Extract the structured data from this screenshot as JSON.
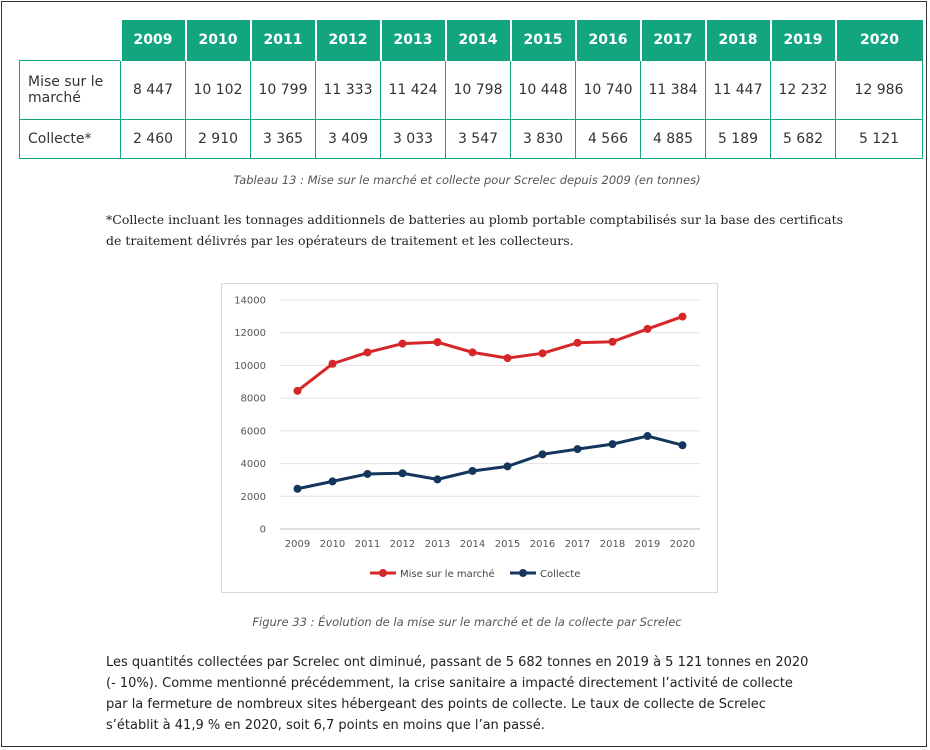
{
  "table": {
    "years": [
      "2009",
      "2010",
      "2011",
      "2012",
      "2013",
      "2014",
      "2015",
      "2016",
      "2017",
      "2018",
      "2019",
      "2020"
    ],
    "rows": [
      {
        "label": "Mise sur le marché",
        "values": [
          "8 447",
          "10 102",
          "10 799",
          "11 333",
          "11 424",
          "10 798",
          "10 448",
          "10 740",
          "11 384",
          "11 447",
          "12 232",
          "12 986"
        ]
      },
      {
        "label": "Collecte*",
        "values": [
          "2 460",
          "2 910",
          "3 365",
          "3 409",
          "3 033",
          "3 547",
          "3 830",
          "4 566",
          "4 885",
          "5 189",
          "5 682",
          "5 121"
        ]
      }
    ]
  },
  "table_caption": "Tableau 13 : Mise sur le marché et collecte pour Screlec depuis 2009 (en tonnes)",
  "note": "*Collecte incluant les tonnages additionnels de batteries au plomb portable comptabilisés sur la base des certificats de traitement délivrés par les opérateurs de traitement et les collecteurs.",
  "chart_data": {
    "type": "line",
    "x": [
      "2009",
      "2010",
      "2011",
      "2012",
      "2013",
      "2014",
      "2015",
      "2016",
      "2017",
      "2018",
      "2019",
      "2020"
    ],
    "series": [
      {
        "name": "Mise sur le marché",
        "color": "#d62728",
        "values": [
          8447,
          10102,
          10799,
          11333,
          11424,
          10798,
          10448,
          10740,
          11384,
          11447,
          12232,
          12986
        ]
      },
      {
        "name": "Collecte",
        "color": "#14365d",
        "values": [
          2460,
          2910,
          3365,
          3409,
          3033,
          3547,
          3830,
          4566,
          4885,
          5189,
          5682,
          5121
        ]
      }
    ],
    "yticks": [
      0,
      2000,
      4000,
      6000,
      8000,
      10000,
      12000,
      14000
    ],
    "ylim": [
      0,
      14000
    ],
    "legend": "bottom",
    "title": "",
    "xlabel": "",
    "ylabel": ""
  },
  "figure_caption": "Figure 33 : Évolution de la mise sur le marché et de la collecte par Screlec",
  "paragraph": {
    "line1": "Les quantités collectées par Screlec ont diminué, passant de 5 682 tonnes en 2019 à 5 121 tonnes en 2020",
    "line2": "(- 10%). Comme mentionné précédemment, la crise sanitaire a impacté directement l’activité de collecte",
    "line3": "par la fermeture de nombreux sites hébergeant des points de collecte. Le taux de collecte de Screlec",
    "line4": "s’établit à 41,9 % en 2020, soit 6,7 points en moins que l’an passé."
  }
}
